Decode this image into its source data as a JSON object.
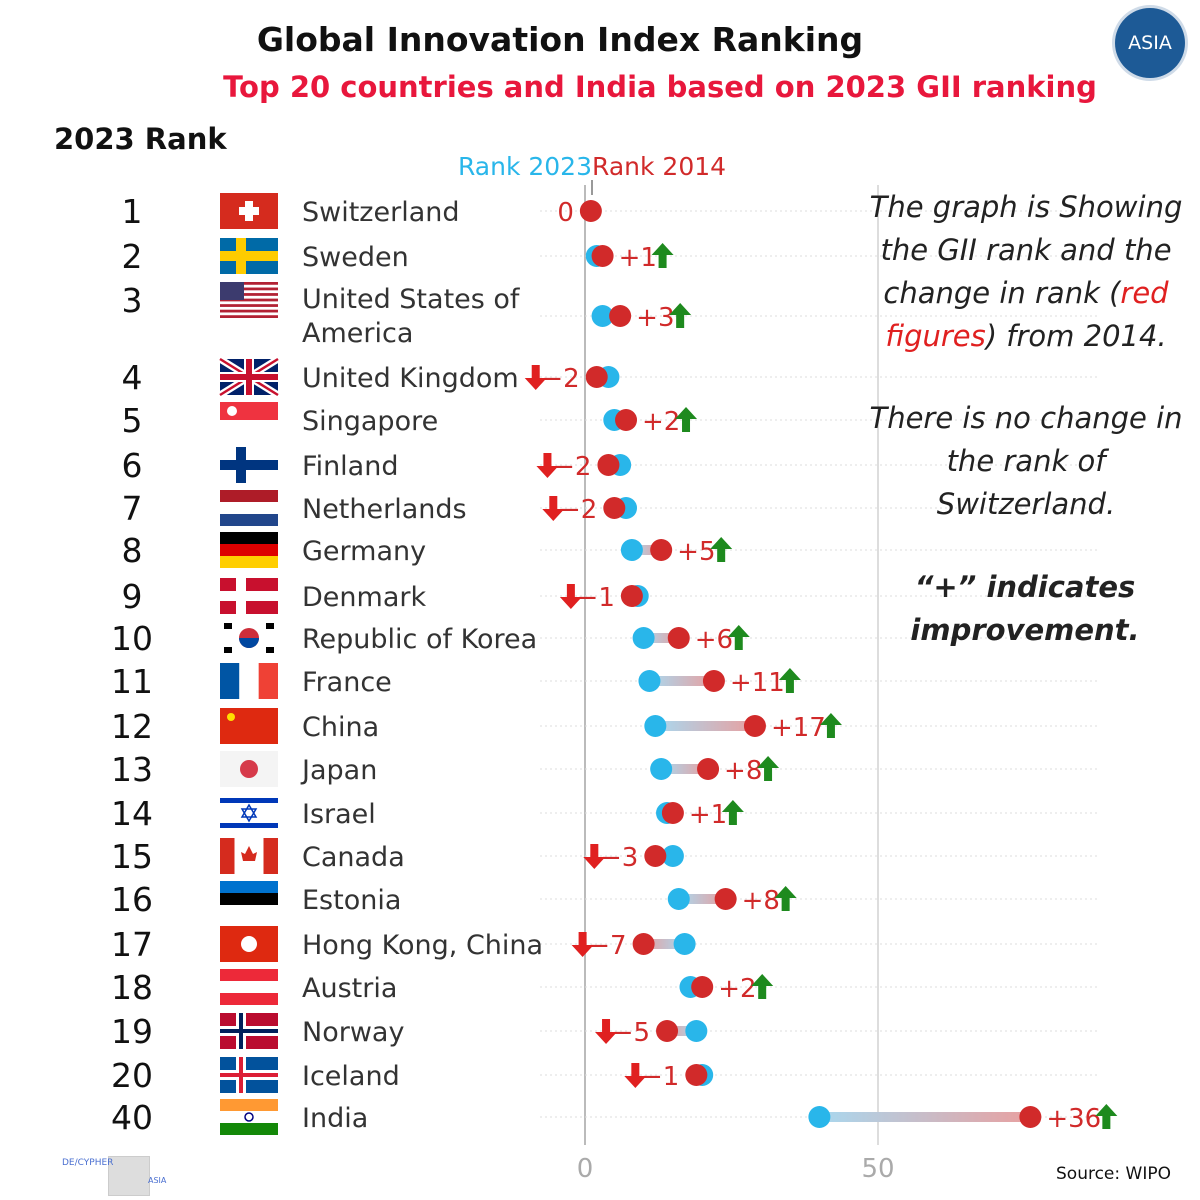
{
  "title": "Global Innovation Index Ranking",
  "subtitle": "Top 20 countries and India based on 2023 GII ranking",
  "logo_text": "ASIA",
  "rank_header": "2023 Rank",
  "notes": {
    "p1_a": "The graph is Showing the GII rank and the change in rank (",
    "p1_red": "red figures",
    "p1_b": ") from 2014.",
    "p2": "There is no change in the rank of Switzerland.",
    "p3": "“+” indicates improvement."
  },
  "source": "Source: WIPO",
  "watermark": {
    "left": "DE/CYPHER",
    "right": "ASIA"
  },
  "colors": {
    "rank2023": "#29b6ea",
    "rank2014": "#d12a2a",
    "up_arrow": "#1e8a1e",
    "down_arrow": "#e02020",
    "title_red": "#e8173c"
  },
  "chart_data": {
    "type": "dumbbell",
    "legend": [
      "Rank 2023",
      "Rank 2014"
    ],
    "xlim": [
      0,
      50
    ],
    "xticks": [
      "0",
      "50"
    ],
    "grid": true,
    "rows": [
      {
        "rank": "1",
        "country": "Switzerland",
        "rank2023": 1,
        "rank2014": 1,
        "change": "0"
      },
      {
        "rank": "2",
        "country": "Sweden",
        "rank2023": 2,
        "rank2014": 3,
        "change": "+1"
      },
      {
        "rank": "3",
        "country": "United States of America",
        "rank2023": 3,
        "rank2014": 6,
        "change": "+3"
      },
      {
        "rank": "4",
        "country": "United Kingdom",
        "rank2023": 4,
        "rank2014": 2,
        "change": "-2"
      },
      {
        "rank": "5",
        "country": "Singapore",
        "rank2023": 5,
        "rank2014": 7,
        "change": "+2"
      },
      {
        "rank": "6",
        "country": "Finland",
        "rank2023": 6,
        "rank2014": 4,
        "change": "-2"
      },
      {
        "rank": "7",
        "country": "Netherlands",
        "rank2023": 7,
        "rank2014": 5,
        "change": "-2"
      },
      {
        "rank": "8",
        "country": "Germany",
        "rank2023": 8,
        "rank2014": 13,
        "change": "+5"
      },
      {
        "rank": "9",
        "country": "Denmark",
        "rank2023": 9,
        "rank2014": 8,
        "change": "-1"
      },
      {
        "rank": "10",
        "country": "Republic of Korea",
        "rank2023": 10,
        "rank2014": 16,
        "change": "+6"
      },
      {
        "rank": "11",
        "country": "France",
        "rank2023": 11,
        "rank2014": 22,
        "change": "+11"
      },
      {
        "rank": "12",
        "country": "China",
        "rank2023": 12,
        "rank2014": 29,
        "change": "+17"
      },
      {
        "rank": "13",
        "country": "Japan",
        "rank2023": 13,
        "rank2014": 21,
        "change": "+8"
      },
      {
        "rank": "14",
        "country": "Israel",
        "rank2023": 14,
        "rank2014": 15,
        "change": "+1"
      },
      {
        "rank": "15",
        "country": "Canada",
        "rank2023": 15,
        "rank2014": 12,
        "change": "-3"
      },
      {
        "rank": "16",
        "country": "Estonia",
        "rank2023": 16,
        "rank2014": 24,
        "change": "+8"
      },
      {
        "rank": "17",
        "country": "Hong Kong, China",
        "rank2023": 17,
        "rank2014": 10,
        "change": "-7"
      },
      {
        "rank": "18",
        "country": "Austria",
        "rank2023": 18,
        "rank2014": 20,
        "change": "+2"
      },
      {
        "rank": "19",
        "country": "Norway",
        "rank2023": 19,
        "rank2014": 14,
        "change": "-5"
      },
      {
        "rank": "20",
        "country": "Iceland",
        "rank2023": 20,
        "rank2014": 19,
        "change": "-1"
      },
      {
        "rank": "40",
        "country": "India",
        "rank2023": 40,
        "rank2014": 76,
        "change": "+36"
      }
    ]
  }
}
